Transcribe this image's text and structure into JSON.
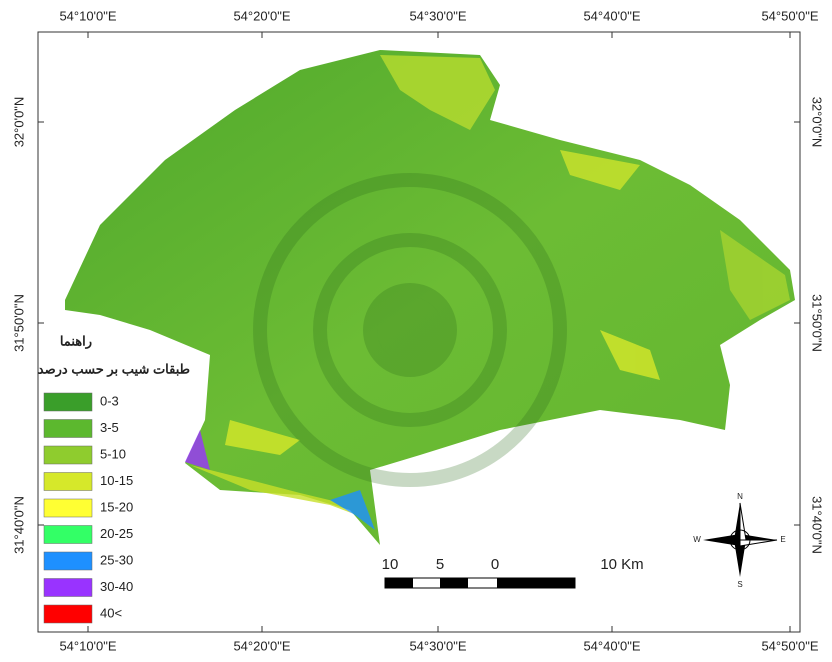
{
  "map": {
    "top_labels": [
      "54°10'0\"E",
      "54°20'0\"E",
      "54°30'0\"E",
      "54°40'0\"E",
      "54°50'0\"E"
    ],
    "bottom_labels": [
      "54°10'0\"E",
      "54°20'0\"E",
      "54°30'0\"E",
      "54°40'0\"E",
      "54°50'0\"E"
    ],
    "left_labels": [
      "32°0'0\"N",
      "31°50'0\"N",
      "31°40'0\"N"
    ],
    "right_labels": [
      "32°0'0\"N",
      "31°50'0\"N",
      "31°40'0\"N"
    ],
    "legend": {
      "title": "راهنما",
      "subtitle": "طبقات شیب بر حسب درصد",
      "items": [
        {
          "label": "0-3",
          "color": "#3a9e2a"
        },
        {
          "label": "3-5",
          "color": "#5cb82e"
        },
        {
          "label": "5-10",
          "color": "#8fcc2e"
        },
        {
          "label": "10-15",
          "color": "#d6e82a"
        },
        {
          "label": "15-20",
          "color": "#ffff33"
        },
        {
          "label": "20-25",
          "color": "#33ff66"
        },
        {
          "label": "25-30",
          "color": "#1e90ff"
        },
        {
          "label": "30-40",
          "color": "#9933ff"
        },
        {
          "label": "40<",
          "color": "#ff0000"
        }
      ]
    },
    "scale_bar": {
      "labels": [
        "10",
        "5",
        "0",
        "10 Km"
      ]
    },
    "compass": {
      "n": "N",
      "s": "S",
      "e": "E",
      "w": "W"
    }
  }
}
